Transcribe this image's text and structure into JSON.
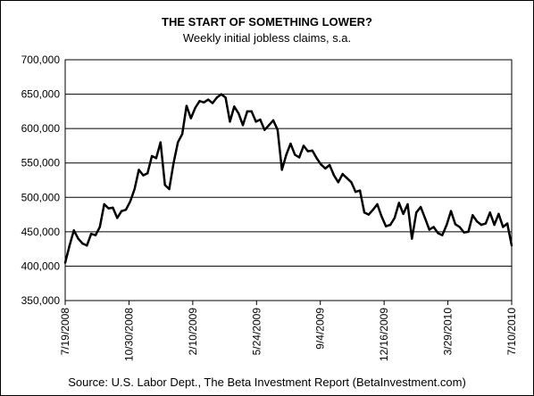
{
  "chart_data": {
    "type": "line",
    "title": "THE START OF SOMETHING LOWER?",
    "subtitle": "Weekly initial jobless claims, s.a.",
    "source": "Source: U.S. Labor Dept., The Beta Investment Report (BetaInvestment.com)",
    "xlabel": "",
    "ylabel": "",
    "ylim": [
      350000,
      700000
    ],
    "yticks": [
      "350,000",
      "400,000",
      "450,000",
      "500,000",
      "550,000",
      "600,000",
      "650,000",
      "700,000"
    ],
    "xlim": [
      "2008-07-19",
      "2010-07-10"
    ],
    "xticks": [
      {
        "date": "2008-07-19",
        "label": "7/19/2008"
      },
      {
        "date": "2008-10-30",
        "label": "10/30/2008"
      },
      {
        "date": "2009-02-10",
        "label": "2/10/2009"
      },
      {
        "date": "2009-05-24",
        "label": "5/24/2009"
      },
      {
        "date": "2009-09-04",
        "label": "9/4/2009"
      },
      {
        "date": "2009-12-16",
        "label": "12/16/2009"
      },
      {
        "date": "2010-03-29",
        "label": "3/29/2010"
      },
      {
        "date": "2010-07-10",
        "label": "7/10/2010"
      }
    ],
    "grid": "horizontal",
    "line_color": "#000000",
    "series": [
      {
        "name": "",
        "x": [
          "2008-07-19",
          "2008-07-26",
          "2008-08-02",
          "2008-08-09",
          "2008-08-16",
          "2008-08-23",
          "2008-08-30",
          "2008-09-06",
          "2008-09-13",
          "2008-09-20",
          "2008-09-27",
          "2008-10-04",
          "2008-10-11",
          "2008-10-18",
          "2008-10-25",
          "2008-11-01",
          "2008-11-08",
          "2008-11-15",
          "2008-11-22",
          "2008-11-29",
          "2008-12-06",
          "2008-12-13",
          "2008-12-20",
          "2008-12-27",
          "2009-01-03",
          "2009-01-10",
          "2009-01-17",
          "2009-01-24",
          "2009-01-31",
          "2009-02-07",
          "2009-02-14",
          "2009-02-21",
          "2009-02-28",
          "2009-03-07",
          "2009-03-14",
          "2009-03-21",
          "2009-03-28",
          "2009-04-04",
          "2009-04-11",
          "2009-04-18",
          "2009-04-25",
          "2009-05-02",
          "2009-05-09",
          "2009-05-16",
          "2009-05-23",
          "2009-05-30",
          "2009-06-06",
          "2009-06-13",
          "2009-06-20",
          "2009-06-27",
          "2009-07-04",
          "2009-07-11",
          "2009-07-18",
          "2009-07-25",
          "2009-08-01",
          "2009-08-08",
          "2009-08-15",
          "2009-08-22",
          "2009-08-29",
          "2009-09-05",
          "2009-09-12",
          "2009-09-19",
          "2009-09-26",
          "2009-10-03",
          "2009-10-10",
          "2009-10-17",
          "2009-10-24",
          "2009-10-31",
          "2009-11-07",
          "2009-11-14",
          "2009-11-21",
          "2009-11-28",
          "2009-12-05",
          "2009-12-12",
          "2009-12-19",
          "2009-12-26",
          "2010-01-02",
          "2010-01-09",
          "2010-01-16",
          "2010-01-23",
          "2010-01-30",
          "2010-02-06",
          "2010-02-13",
          "2010-02-20",
          "2010-02-27",
          "2010-03-06",
          "2010-03-13",
          "2010-03-20",
          "2010-03-27",
          "2010-04-03",
          "2010-04-10",
          "2010-04-17",
          "2010-04-24",
          "2010-05-01",
          "2010-05-08",
          "2010-05-15",
          "2010-05-22",
          "2010-05-29",
          "2010-06-05",
          "2010-06-12",
          "2010-06-19",
          "2010-06-26",
          "2010-07-03",
          "2010-07-10"
        ],
        "values": [
          405000,
          430000,
          452000,
          440000,
          433000,
          430000,
          447000,
          445000,
          457000,
          490000,
          484000,
          485000,
          470000,
          480000,
          482000,
          494000,
          512000,
          540000,
          532000,
          535000,
          560000,
          557000,
          580000,
          518000,
          512000,
          550000,
          580000,
          592000,
          633000,
          615000,
          630000,
          640000,
          638000,
          642000,
          637000,
          645000,
          650000,
          645000,
          610000,
          632000,
          622000,
          605000,
          625000,
          625000,
          610000,
          613000,
          598000,
          605000,
          612000,
          598000,
          540000,
          562000,
          578000,
          562000,
          558000,
          575000,
          567000,
          568000,
          557000,
          548000,
          542000,
          547000,
          532000,
          522000,
          534000,
          528000,
          522000,
          508000,
          510000,
          478000,
          475000,
          482000,
          490000,
          472000,
          458000,
          460000,
          470000,
          492000,
          476000,
          490000,
          440000,
          478000,
          486000,
          470000,
          453000,
          457000,
          448000,
          445000,
          460000,
          480000,
          461000,
          457000,
          449000,
          450000,
          474000,
          465000,
          460000,
          462000,
          478000,
          460000,
          476000,
          457000,
          462000,
          430000
        ]
      }
    ]
  }
}
